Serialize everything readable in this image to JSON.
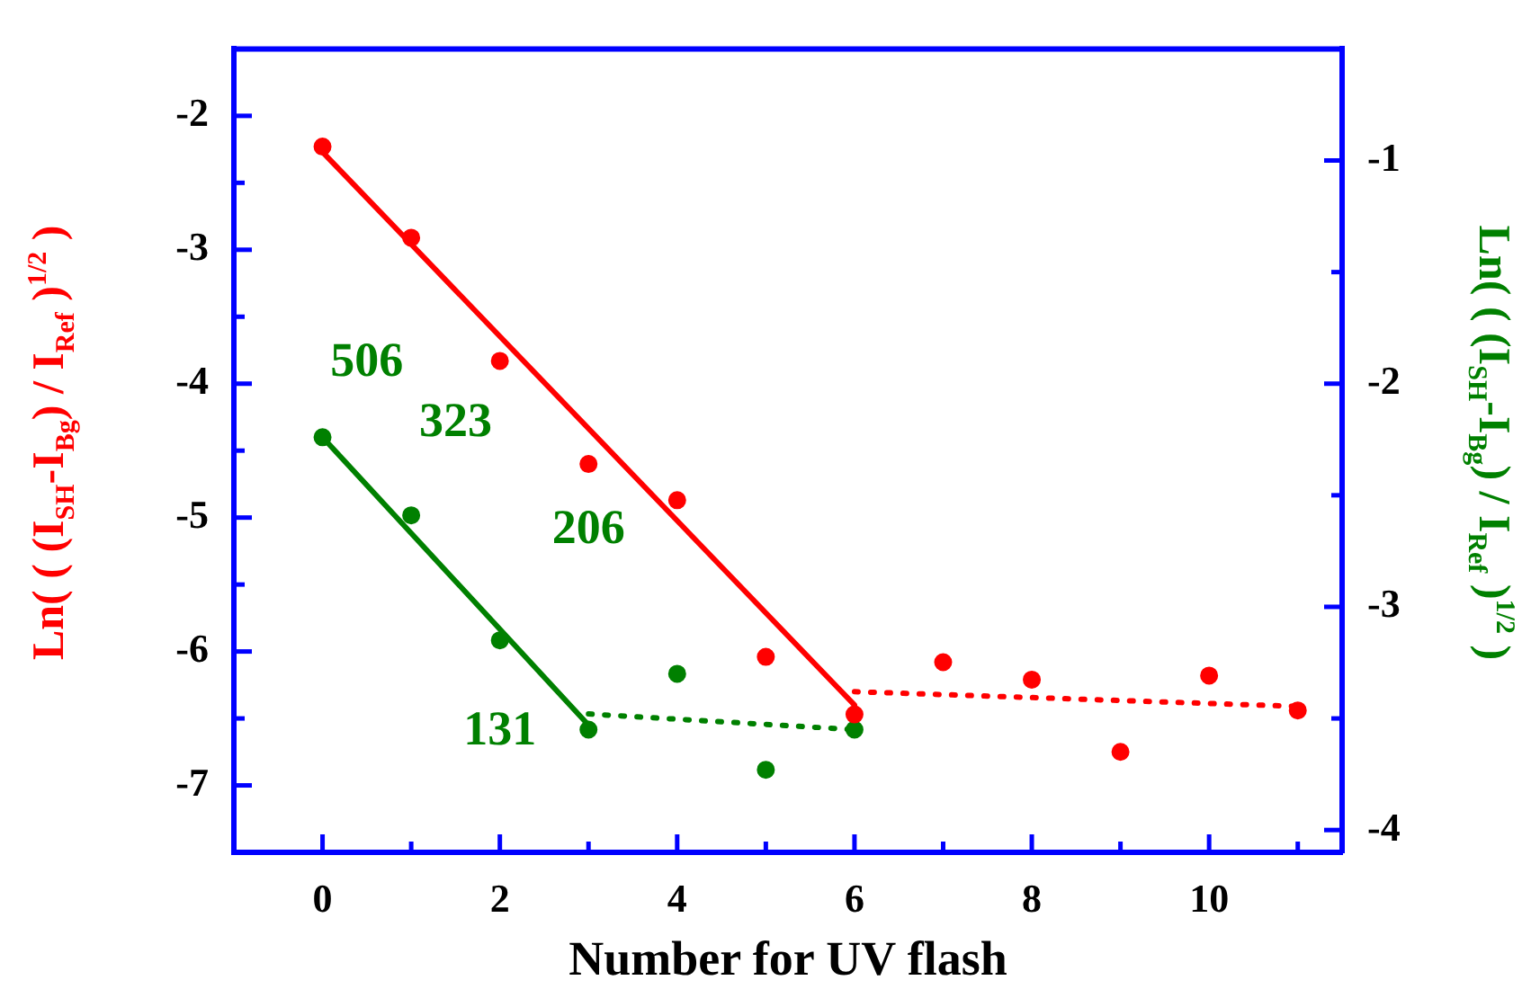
{
  "chart_data": {
    "type": "scatter",
    "xlabel": "Number for UV flash",
    "ylabel": "Ln( ( (I$_{SH}$-I$_{Bg}$) / I$_{Ref}$ )$^{1/2}$ )",
    "y2label": "Ln( ( (I$_{SH}$-I$_{Bg}$) / I$_{Ref}$ )$^{1/2}$ )",
    "xlim": [
      -1,
      11.5
    ],
    "xticks": [
      0,
      {
        "value": 1,
        "label": null
      },
      2,
      {
        "value": 3,
        "label": null
      },
      4,
      {
        "value": 5,
        "label": null
      },
      6,
      {
        "value": 7,
        "label": null
      },
      8,
      {
        "value": 9,
        "label": null
      },
      10,
      {
        "value": 11,
        "label": null
      }
    ],
    "ylim": [
      -7.5,
      -1.5
    ],
    "yticks": [
      -7,
      {
        "value": -6.5,
        "label": null
      },
      -6,
      {
        "value": -5.5,
        "label": null
      },
      -5,
      {
        "value": -4.5,
        "label": null
      },
      -4,
      {
        "value": -3.5,
        "label": null
      },
      -3,
      {
        "value": -2.5,
        "label": null
      },
      -2
    ],
    "y2lim": [
      -4.1,
      -0.5
    ],
    "y2ticks": [
      -4,
      {
        "value": -3.5,
        "label": null
      },
      -3,
      {
        "value": -2.5,
        "label": null
      },
      -2,
      {
        "value": -1.5,
        "label": null
      },
      -1
    ],
    "series": [
      {
        "marker": "circle",
        "color": "#ff0000",
        "x": [
          0,
          1,
          2,
          3,
          4,
          5,
          6,
          7,
          8,
          9,
          10,
          11
        ],
        "values": [
          -2.23,
          -2.91,
          -3.83,
          -4.6,
          -4.87,
          -6.04,
          -6.47,
          -6.08,
          -6.21,
          -6.75,
          -6.18,
          -6.44
        ]
      },
      {
        "type": "line",
        "color": "#ff0000",
        "line_style": "solid",
        "x": [
          0,
          6
        ],
        "values": [
          -2.27,
          -6.4
        ]
      },
      {
        "type": "line",
        "color": "#ff0000",
        "line_style": "dotted",
        "x": [
          6,
          11
        ],
        "values": [
          -6.3,
          -6.41
        ]
      },
      {
        "marker": "circle",
        "axis": "y2",
        "color": "#008000",
        "x": [
          0,
          1,
          2,
          3,
          4,
          5,
          6
        ],
        "values": [
          -2.24,
          -2.59,
          -3.15,
          -3.55,
          -3.3,
          -3.73,
          -3.55
        ]
      },
      {
        "type": "line",
        "axis": "y2",
        "color": "#008000",
        "line_style": "solid",
        "x": [
          0,
          3
        ],
        "values": [
          -2.24,
          -3.53
        ]
      },
      {
        "type": "line",
        "axis": "y2",
        "color": "#008000",
        "line_style": "dotted",
        "x": [
          3,
          6
        ],
        "values": [
          -3.48,
          -3.55
        ]
      }
    ],
    "annotations": [
      "506",
      "323",
      "206",
      "131"
    ]
  }
}
